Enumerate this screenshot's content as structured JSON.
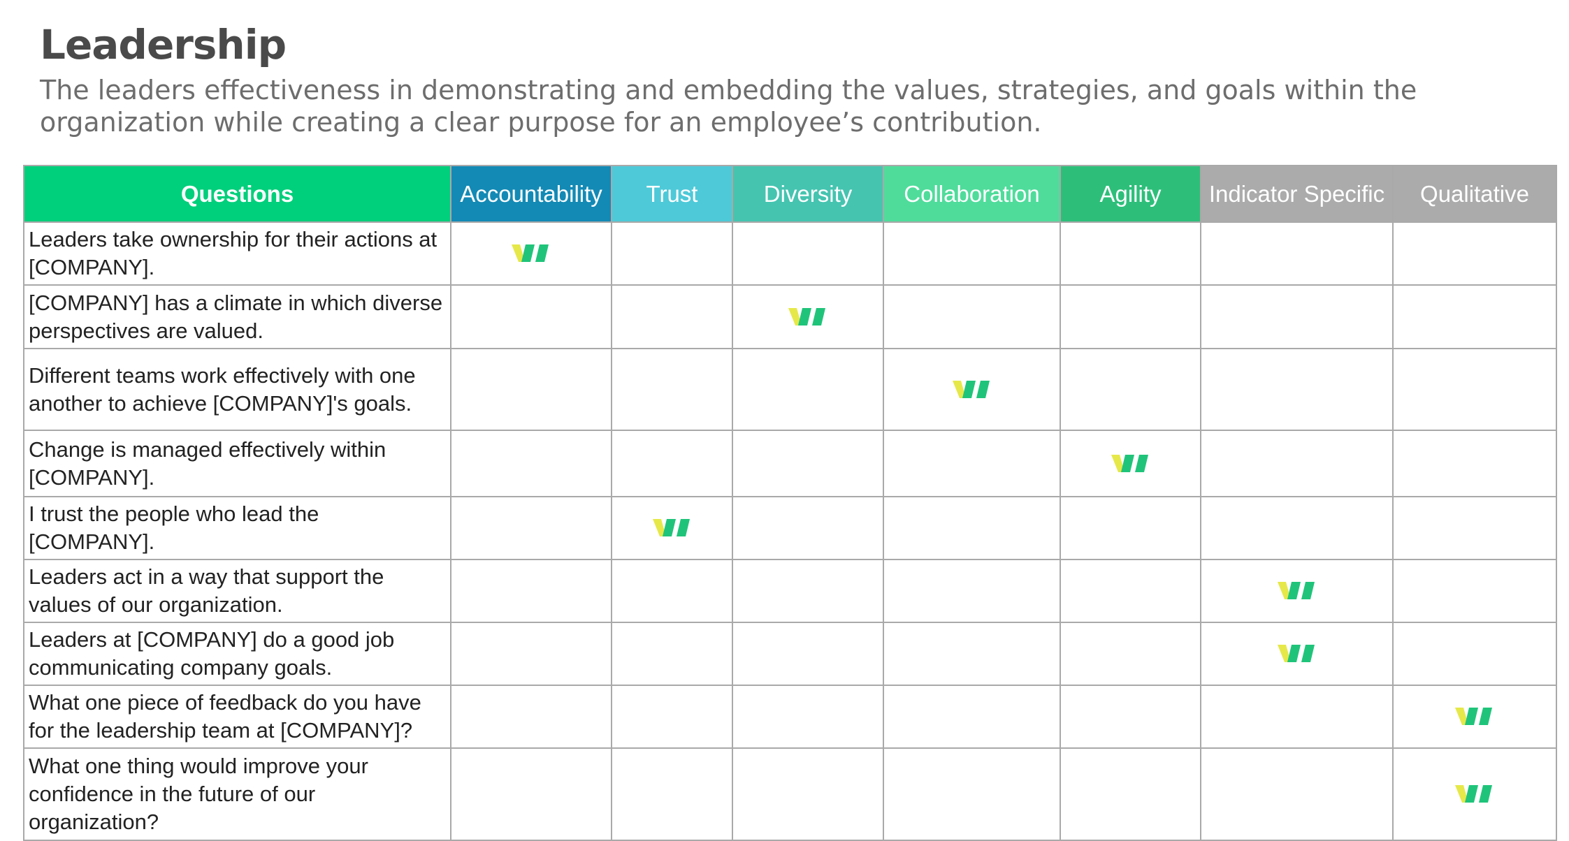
{
  "header": {
    "title": "Leadership",
    "subtitle": "The leaders effectiveness in demonstrating and embedding the values, strategies, and goals within the organization while creating a clear purpose for an employee’s contribution."
  },
  "table": {
    "question_header": "Questions",
    "columns": [
      {
        "label": "Accountability",
        "color": "#138ab5"
      },
      {
        "label": "Trust",
        "color": "#4ec9d8"
      },
      {
        "label": "Diversity",
        "color": "#45c4b0"
      },
      {
        "label": "Collaboration",
        "color": "#4fdc9b"
      },
      {
        "label": "Agility",
        "color": "#2dbf7a"
      },
      {
        "label": "Indicator Specific",
        "color": "#ababab"
      },
      {
        "label": "Qualitative",
        "color": "#ababab"
      }
    ],
    "question_header_color": "#00cf7b",
    "rows": [
      {
        "question": "Leaders take ownership for their actions at [COMPANY].",
        "checked_column": "Accountability"
      },
      {
        "question": "[COMPANY] has a climate in which diverse perspectives are valued.",
        "checked_column": "Diversity"
      },
      {
        "question": "Different teams work effectively with one another to achieve [COMPANY]'s goals.",
        "checked_column": "Collaboration"
      },
      {
        "question": "Change is managed effectively within [COMPANY].",
        "checked_column": "Agility"
      },
      {
        "question": "I trust the people who lead the [COMPANY].",
        "checked_column": "Trust"
      },
      {
        "question": "Leaders act in a way that support the values of our organization.",
        "checked_column": "Indicator Specific"
      },
      {
        "question": "Leaders at [COMPANY] do a good job communicating company goals.",
        "checked_column": "Indicator Specific"
      },
      {
        "question": "What one piece of feedback do you have for the leadership team at [COMPANY]?",
        "checked_column": "Qualitative"
      },
      {
        "question": "What one thing would improve your confidence in the future of our organization?",
        "checked_column": "Qualitative"
      }
    ],
    "check_icon": "leaf-check-icon",
    "check_colors": {
      "primary": "#1fc47a",
      "accent": "#e6e84a"
    }
  }
}
